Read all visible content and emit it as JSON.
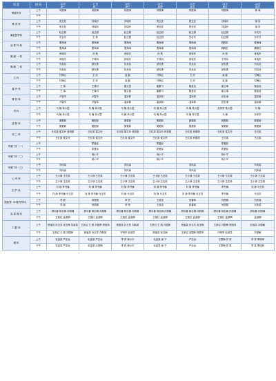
{
  "header": {
    "col_dept": "科 室",
    "col_session": "时 间",
    "days": [
      {
        "date": "10月",
        "weekday": "周一"
      },
      {
        "date": "17日",
        "weekday": "周二"
      },
      {
        "date": "18日",
        "weekday": "周三"
      },
      {
        "date": "19日",
        "weekday": "周四"
      },
      {
        "date": "20日",
        "weekday": "周五"
      },
      {
        "date": "21日",
        "weekday": "周六"
      },
      {
        "date": "22日",
        "weekday": "周日"
      }
    ]
  },
  "departments": [
    {
      "name": "神经外科",
      "rows": [
        {
          "session": "上午",
          "cells": [
            "何振海",
            "何振海",
            "何振海",
            "何振海",
            "何振海",
            "何振海",
            "徐 涛"
          ]
        },
        {
          "session": "下午",
          "cells": [
            "",
            "",
            "",
            "",
            "",
            "",
            ""
          ]
        }
      ]
    },
    {
      "name": "骨 本 科",
      "rows": [
        {
          "session": "上午",
          "cells": [
            "贺玉亚",
            "刘瑞玲",
            "刘瑞玲",
            "贺玉亚",
            "贺玉亚",
            "刘瑞玲",
            "徐 凯"
          ]
        },
        {
          "session": "下午",
          "cells": [
            "贺玉亚",
            "刘瑞玲",
            "刘瑞玲",
            "贺玉亚",
            "贺玉亚",
            "刘瑞玲",
            "徐 凯"
          ]
        }
      ]
    },
    {
      "name": "康复医学科",
      "rows": [
        {
          "session": "上午",
          "cells": [
            "赵正超",
            "赵正超",
            "赵正超",
            "赵正超",
            "赵正超",
            "赵正超",
            "孙东升"
          ]
        },
        {
          "session": "下午",
          "cells": [
            "关台东",
            "王 新",
            "赵正超",
            "赵正超",
            "关台东",
            "赵正超",
            "孙东升"
          ]
        }
      ]
    },
    {
      "name": "泌 尿 外 科",
      "rows": [
        {
          "session": "上午",
          "cells": [
            "曹海涛",
            "曹海涛",
            "曹海涛",
            "曹海涛",
            "曹海涛",
            "魏振红",
            "曹海涛"
          ]
        },
        {
          "session": "下午",
          "cells": [
            "曹海涛",
            "曹海涛",
            "曹海涛",
            "曹海涛",
            "曹海涛",
            "魏振红",
            "魏振红"
          ]
        }
      ]
    },
    {
      "name": "胸 痛 一 科",
      "rows": [
        {
          "session": "上午",
          "cells": [
            "肖晓东",
            "孙 慧",
            "肖晓东",
            "孙 慧",
            "肖晓东",
            "孙 慧",
            "肖晓东"
          ]
        },
        {
          "session": "下午",
          "cells": [
            "肖晓东",
            "于祥兵",
            "肖晓东",
            "于祥兵",
            "肖晓东",
            "于祥兵",
            "肖晓东"
          ]
        }
      ]
    },
    {
      "name": "胸 痛 二 科",
      "rows": [
        {
          "session": "上午",
          "cells": [
            "刘兵兵",
            "邵光勇",
            "刘兵兵",
            "邵光勇",
            "刘兵兵",
            "邵光勇",
            "刘兵兵"
          ]
        },
        {
          "session": "下午",
          "cells": [
            "刘兵兵",
            "邵光勇",
            "刘兵兵",
            "邵光勇",
            "刘兵兵",
            "邵光勇",
            "刘兵兵"
          ]
        }
      ]
    },
    {
      "name": "儿 科",
      "rows": [
        {
          "session": "上午",
          "cells": [
            "付梅云",
            "王 欣",
            "高 磊",
            "付梅云",
            "王 欣",
            "高 磊",
            "付梅云"
          ]
        },
        {
          "session": "下午",
          "cells": [
            "付梅云",
            "王 欣",
            "高 磊",
            "付梅云",
            "王 欣",
            "高 磊",
            "付梅云"
          ]
        }
      ]
    },
    {
      "name": "普 外 科",
      "rows": [
        {
          "session": "上午",
          "cells": [
            "王 瑞",
            "王焕可",
            "崔云霞",
            "崔鹏飞",
            "管金龙",
            "崔立瑞",
            "管金龙"
          ]
        },
        {
          "session": "下午",
          "cells": [
            "王 瑞",
            "王焕可",
            "崔云霞",
            "崔鹏飞",
            "管金龙",
            "崔立瑞",
            "管金龙"
          ]
        }
      ]
    },
    {
      "name": "骨 伤 科",
      "rows": [
        {
          "session": "上午",
          "cells": [
            "卢智华",
            "卢智华",
            "温京新",
            "温京新",
            "温京新",
            "张文涛",
            "温京新"
          ]
        },
        {
          "session": "下午",
          "cells": [
            "卢智华",
            "卢智华",
            "温京新",
            "温京新",
            "温京新",
            "张文涛",
            "温京新"
          ]
        }
      ]
    },
    {
      "name": "内 科",
      "rows": [
        {
          "session": "上午",
          "cells": [
            "马 楠 朱小霞",
            "马 楠 朱小霞",
            "马 楠 朱小霞",
            "马 楠 朱小霞",
            "马 楠 朱小霞",
            "孙庆学 朱小霞",
            "马 楠"
          ]
        },
        {
          "session": "下午",
          "cells": [
            "马 楠 朱小霞",
            "马 楠 朱小霞",
            "马 楠 朱小霞",
            "马 楠 朱小霞",
            "马 楠 朱小霞",
            "马 楠",
            "孙庆学"
          ]
        }
      ]
    },
    {
      "name": "皮 肤 科",
      "rows": [
        {
          "session": "上午",
          "cells": [
            "樊更新",
            "樊更新",
            "樊更新",
            "樊更新",
            "樊更新",
            "樊更新",
            "樊更新"
          ]
        },
        {
          "session": "下午",
          "cells": [
            "樊更新",
            "樊更新",
            "樊更新",
            "樊更新",
            "樊更新",
            "樊更新",
            "樊更新"
          ]
        }
      ]
    },
    {
      "name": "肉 二 科",
      "rows": [
        {
          "session": "上午",
          "cells": [
            "王红英 侯文玲 肖丽丽",
            "王红英 侯文玲",
            "王红英 侯文玲 肖丽丽",
            "王红英 侯文玲 肖丽丽",
            "王红英 肖丽丽",
            "王红英 侯文玲",
            "王红英"
          ]
        },
        {
          "session": "下午",
          "cells": [
            "王红英 侯文玲",
            "王红英 侯文玲",
            "王红英 侯文玲",
            "王红英 侯文玲",
            "王红英 肖丽丽",
            "王红英",
            "王红英"
          ]
        }
      ]
    },
    {
      "name": "专家门诊（一）",
      "rows": [
        {
          "session": "上午",
          "cells": [
            "",
            "霍爱民",
            "",
            "霍爱民",
            "",
            "霍爱民",
            ""
          ]
        },
        {
          "session": "下午",
          "cells": [
            "",
            "霍爱民",
            "",
            "霍爱民",
            "",
            "霍爱民",
            ""
          ]
        }
      ]
    },
    {
      "name": "专家门诊（二）",
      "rows": [
        {
          "session": "上午",
          "cells": [
            "",
            "杨小平",
            "",
            "杨小平",
            "",
            "杨小平",
            ""
          ]
        },
        {
          "session": "下午",
          "cells": [
            "",
            "杨小平",
            "",
            "杨小平",
            "",
            "杨小平",
            ""
          ]
        }
      ]
    },
    {
      "name": "专家门诊（三）",
      "rows": [
        {
          "session": "上午",
          "cells": [
            "刘凤喜",
            "",
            "刘凤喜",
            "",
            "刘凤喜",
            "",
            "刘凤喜"
          ]
        },
        {
          "session": "下午",
          "cells": [
            "刘凤喜",
            "",
            "刘凤喜",
            "",
            "刘凤喜",
            "",
            "刘凤喜"
          ]
        }
      ]
    },
    {
      "name": "心 内 科",
      "rows": [
        {
          "session": "上午",
          "cells": [
            "王小静 王志英",
            "王小静 王志英",
            "王小静 王志英",
            "王小静 王志英",
            "王小静 王志英",
            "王小静 王志英",
            "王小静 王志英"
          ]
        },
        {
          "session": "下午",
          "cells": [
            "王小静 王志英",
            "王小静 王志英",
            "王小静 王志英",
            "王小静 王志英",
            "王小静 王志英",
            "王小静 王志英",
            "王小静 王志英"
          ]
        }
      ]
    },
    {
      "name": "妇 产 科",
      "rows": [
        {
          "session": "上午",
          "cells": [
            "刘 静 李书巍",
            "刘 静 李书巍",
            "刘 静 李书巍",
            "刘 静 李书巍",
            "刘 静 李书巍",
            "李书巍",
            "刘 静 马玉芳"
          ]
        },
        {
          "session": "下午",
          "cells": [
            "刘 静 李书巍 马玉芳",
            "刘 静 李书巍 马玉芳",
            "刘 静 马玉芳",
            "刘 静 马玉芳",
            "刘 静 李书巍 马玉芳",
            "李书巍",
            "马玉芳"
          ]
        }
      ]
    },
    {
      "name": "国医堂（中医内外科）",
      "rows": [
        {
          "session": "上午",
          "cells": [
            "李 超",
            "肖丽丽",
            "李 悦",
            "王淑洁",
            "张春晖",
            "肖丽丽",
            "刘庆斌"
          ]
        },
        {
          "session": "下午",
          "cells": [
            "李 超",
            "肖丽丽",
            "李 悦",
            "王淑洁",
            "张春晖",
            "肖丽丽",
            "刘庆斌"
          ]
        }
      ]
    },
    {
      "name": "耳 鼻 喉 科",
      "rows": [
        {
          "session": "上午",
          "cells": [
            "顾长春 杨志娟 孙丽娟",
            "顾长春 杨志娟 孙丽娟",
            "顾长春 杨志娟 孙丽娟",
            "顾长春 杨志娟 孙丽娟",
            "顾长春 杨志娟 孙丽娟",
            "顾长春 杨志娟 孙丽娟",
            "顾长春 孙丽娟"
          ]
        },
        {
          "session": "下午",
          "cells": [
            "王艳红 孟淑娟",
            "王艳红 孟淑娟",
            "王艳红 孟淑娟",
            "王艳红 孟淑娟",
            "王艳红 孟淑娟",
            "王艳红 孟淑娟",
            "孟淑娟"
          ]
        }
      ]
    },
    {
      "name": "口 腔 科",
      "rows": [
        {
          "session": "上午",
          "cells": [
            "杨宝泉 孙玉芳 张玉梅 刘新英",
            "王彦召 王 丽 刘国荣 邢丽萍",
            "杨宝泉 孙玉芳 刘新英",
            "王彦召 王 丽 刘国荣",
            "杨宝泉 孙玉芳 张玉梅",
            "王彦召 刘国荣 邢丽萍",
            "赵淑芬 刘惠敏"
          ]
        },
        {
          "session": "下午",
          "cells": [
            "王彦召 王 丽 刘国荣",
            "杨宝泉 孙玉芳 刘新英",
            "冷明军 赵淑芬",
            "杨宝泉 张玉梅",
            "王彦召 刘国荣 邢丽萍",
            "冷明军 赵淑芬",
            "刘惠敏"
          ]
        }
      ]
    },
    {
      "name": "眼 科",
      "rows": [
        {
          "session": "上午",
          "cells": [
            "毛金泉 严志远",
            "毛金泉 严志远",
            "李 真 杨小华",
            "毛金泉 吴 宁",
            "严志远",
            "王秀梅 苏 真",
            "李 真 董晓辉"
          ]
        },
        {
          "session": "下午",
          "cells": [
            "毛金泉 严志远",
            "毛金泉 王秀梅",
            "李 真 杨小华",
            "毛金泉 吴 宁",
            "严志远",
            "王秀梅 苏 真",
            "李 真 董晓辉"
          ]
        }
      ]
    }
  ]
}
